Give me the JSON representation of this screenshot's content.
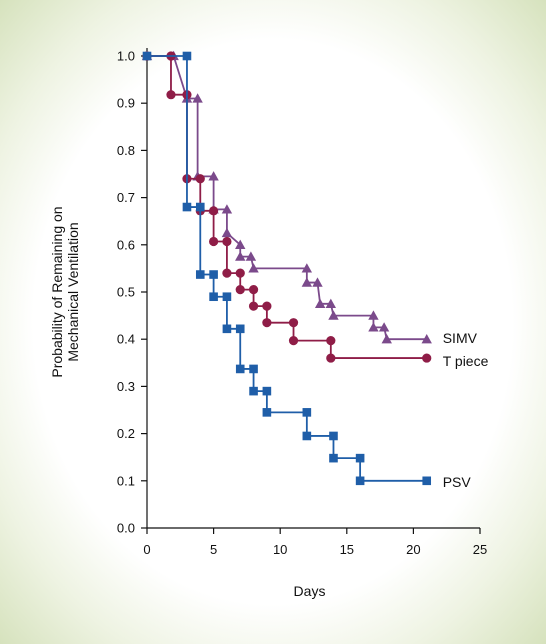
{
  "chart_data": {
    "type": "line",
    "xlabel": "Days",
    "ylabel_lines": [
      "Probability of Remaining on",
      "Mechanical Ventilation"
    ],
    "xlim": [
      0,
      25
    ],
    "ylim": [
      0,
      1.0
    ],
    "x_ticks": [
      0,
      5,
      10,
      15,
      20,
      25
    ],
    "y_ticks": [
      "0.0",
      "0.1",
      "0.2",
      "0.3",
      "0.4",
      "0.5",
      "0.6",
      "0.7",
      "0.8",
      "0.9",
      "1.0"
    ],
    "grid": false,
    "legend_placement": "end-of-line",
    "series": [
      {
        "name": "SIMV",
        "color": "#7b4a8b",
        "marker": "triangle",
        "points": [
          [
            0,
            1.0
          ],
          [
            2,
            1.0
          ],
          [
            3,
            0.91
          ],
          [
            3.8,
            0.91
          ],
          [
            3.8,
            0.745
          ],
          [
            5,
            0.745
          ],
          [
            5,
            0.675
          ],
          [
            6,
            0.675
          ],
          [
            6,
            0.625
          ],
          [
            7,
            0.6
          ],
          [
            7,
            0.575
          ],
          [
            7.8,
            0.575
          ],
          [
            8,
            0.55
          ],
          [
            12,
            0.55
          ],
          [
            12,
            0.52
          ],
          [
            12.8,
            0.52
          ],
          [
            13,
            0.475
          ],
          [
            13.8,
            0.475
          ],
          [
            14,
            0.45
          ],
          [
            17,
            0.45
          ],
          [
            17,
            0.425
          ],
          [
            17.8,
            0.425
          ],
          [
            18,
            0.4
          ],
          [
            21,
            0.4
          ]
        ]
      },
      {
        "name": "T piece",
        "color": "#8f1d47",
        "marker": "circle",
        "points": [
          [
            0,
            1.0
          ],
          [
            1.8,
            1.0
          ],
          [
            1.8,
            0.918
          ],
          [
            3,
            0.918
          ],
          [
            3,
            0.74
          ],
          [
            4,
            0.74
          ],
          [
            4,
            0.672
          ],
          [
            5,
            0.672
          ],
          [
            5,
            0.607
          ],
          [
            6,
            0.607
          ],
          [
            6,
            0.54
          ],
          [
            7,
            0.54
          ],
          [
            7,
            0.505
          ],
          [
            8,
            0.505
          ],
          [
            8,
            0.47
          ],
          [
            9,
            0.47
          ],
          [
            9,
            0.435
          ],
          [
            11,
            0.435
          ],
          [
            11,
            0.397
          ],
          [
            13.8,
            0.397
          ],
          [
            13.8,
            0.36
          ],
          [
            21,
            0.36
          ]
        ]
      },
      {
        "name": "PSV",
        "color": "#1f5ea8",
        "marker": "square",
        "points": [
          [
            0,
            1.0
          ],
          [
            3,
            1.0
          ],
          [
            3,
            0.68
          ],
          [
            4,
            0.68
          ],
          [
            4,
            0.537
          ],
          [
            5,
            0.537
          ],
          [
            5,
            0.49
          ],
          [
            6,
            0.49
          ],
          [
            6,
            0.422
          ],
          [
            7,
            0.422
          ],
          [
            7,
            0.337
          ],
          [
            8,
            0.337
          ],
          [
            8,
            0.29
          ],
          [
            9,
            0.29
          ],
          [
            9,
            0.245
          ],
          [
            12,
            0.245
          ],
          [
            12,
            0.195
          ],
          [
            14,
            0.195
          ],
          [
            14,
            0.148
          ],
          [
            16,
            0.148
          ],
          [
            16,
            0.1
          ],
          [
            21,
            0.1
          ]
        ]
      }
    ]
  }
}
